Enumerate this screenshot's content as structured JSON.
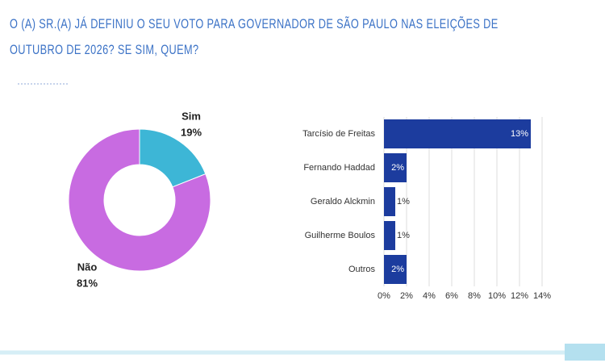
{
  "header": {
    "title": "O (A) SR.(A) JÁ DEFINIU O SEU VOTO PARA GOVERNADOR DE SÃO PAULO NAS ELEIÇÕES DE OUTUBRO DE 2026? SE SIM, QUEM?"
  },
  "chart_data": [
    {
      "type": "pie",
      "categories": [
        "Sim",
        "Não"
      ],
      "values": [
        19,
        81
      ],
      "value_labels": [
        "19%",
        "81%"
      ],
      "colors": [
        "#3db6d6",
        "#c86be1"
      ],
      "donut": true
    },
    {
      "type": "barh",
      "categories": [
        "Tarcísio de Freitas",
        "Fernando Haddad",
        "Geraldo Alckmin",
        "Guilherme Boulos",
        "Outros"
      ],
      "values": [
        13,
        2,
        1,
        1,
        2
      ],
      "value_labels": [
        "13%",
        "2%",
        "1%",
        "1%",
        "2%"
      ],
      "color": "#1c3c9e",
      "xlim": [
        0,
        14
      ],
      "xticks": [
        {
          "value": 0,
          "label": "0%"
        },
        {
          "value": 2,
          "label": "2%"
        },
        {
          "value": 4,
          "label": "4%"
        },
        {
          "value": 6,
          "label": "6%"
        },
        {
          "value": 8,
          "label": "8%"
        },
        {
          "value": 10,
          "label": "10%"
        },
        {
          "value": 12,
          "label": "12%"
        },
        {
          "value": 14,
          "label": "14%"
        }
      ],
      "grid": true
    }
  ]
}
